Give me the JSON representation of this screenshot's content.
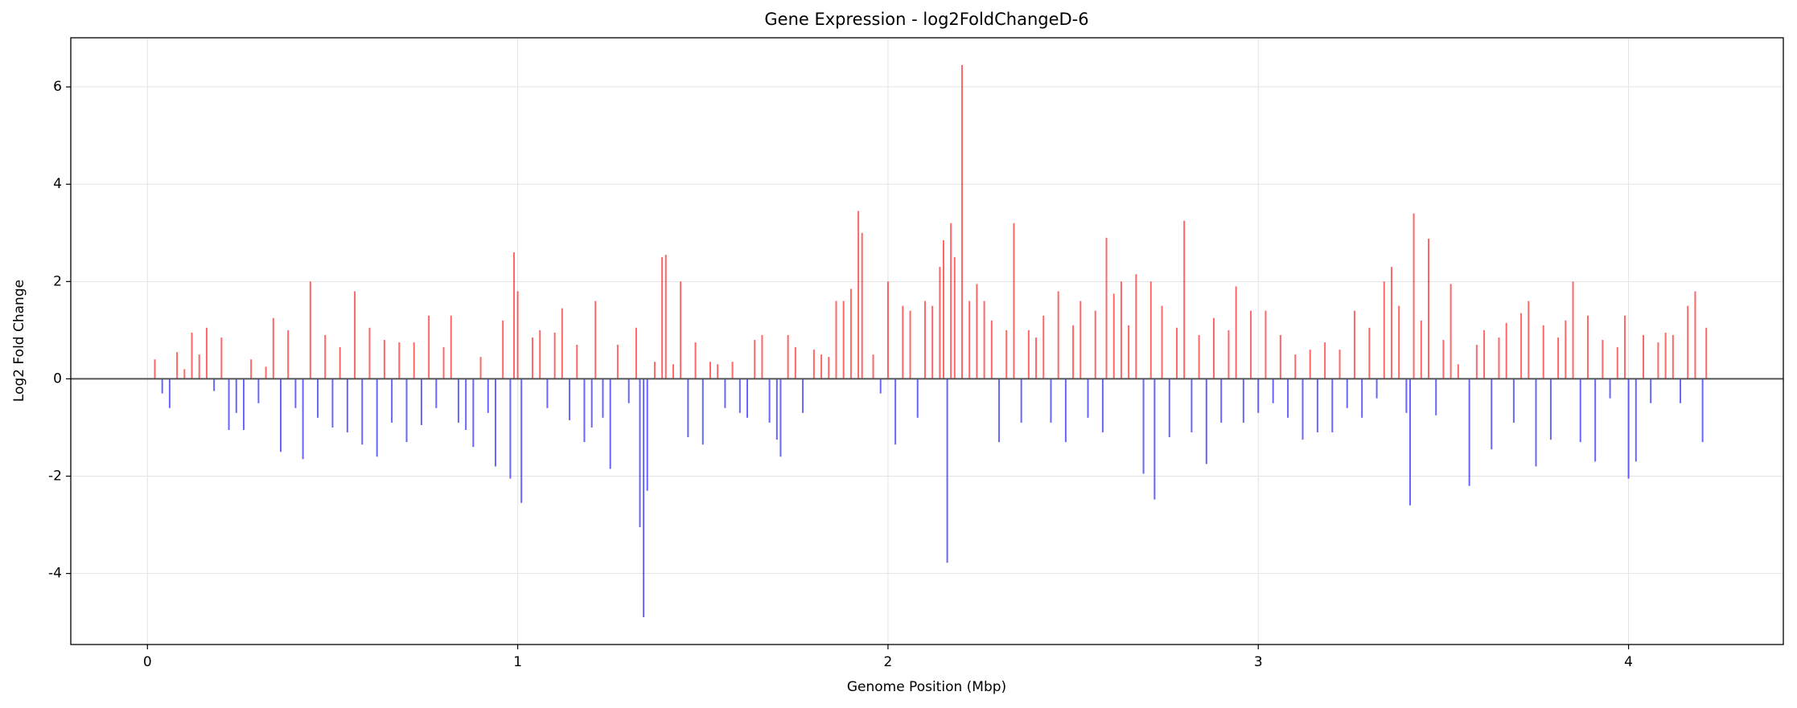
{
  "chart_data": {
    "type": "bar",
    "title": "Gene Expression - log2FoldChangeD-6",
    "xlabel": "Genome Position (Mbp)",
    "ylabel": "Log2 Fold Change",
    "x": [
      0.02,
      0.04,
      0.06,
      0.08,
      0.1,
      0.12,
      0.14,
      0.16,
      0.18,
      0.2,
      0.22,
      0.24,
      0.26,
      0.28,
      0.3,
      0.32,
      0.34,
      0.36,
      0.38,
      0.4,
      0.42,
      0.44,
      0.46,
      0.48,
      0.5,
      0.52,
      0.54,
      0.56,
      0.58,
      0.6,
      0.62,
      0.64,
      0.66,
      0.68,
      0.7,
      0.72,
      0.74,
      0.76,
      0.78,
      0.8,
      0.82,
      0.84,
      0.86,
      0.88,
      0.9,
      0.92,
      0.94,
      0.96,
      0.98,
      0.99,
      1.0,
      1.01,
      1.04,
      1.06,
      1.08,
      1.1,
      1.12,
      1.14,
      1.16,
      1.18,
      1.2,
      1.21,
      1.23,
      1.25,
      1.27,
      1.3,
      1.32,
      1.33,
      1.34,
      1.35,
      1.37,
      1.39,
      1.4,
      1.42,
      1.44,
      1.46,
      1.48,
      1.5,
      1.52,
      1.54,
      1.56,
      1.58,
      1.6,
      1.62,
      1.64,
      1.66,
      1.68,
      1.7,
      1.71,
      1.73,
      1.75,
      1.77,
      1.8,
      1.82,
      1.84,
      1.86,
      1.88,
      1.9,
      1.92,
      1.93,
      1.96,
      1.98,
      2.0,
      2.02,
      2.04,
      2.06,
      2.08,
      2.1,
      2.12,
      2.14,
      2.15,
      2.16,
      2.17,
      2.18,
      2.2,
      2.22,
      2.24,
      2.26,
      2.28,
      2.3,
      2.32,
      2.34,
      2.36,
      2.38,
      2.4,
      2.42,
      2.44,
      2.46,
      2.48,
      2.5,
      2.52,
      2.54,
      2.56,
      2.58,
      2.59,
      2.61,
      2.63,
      2.65,
      2.67,
      2.69,
      2.71,
      2.72,
      2.74,
      2.76,
      2.78,
      2.8,
      2.82,
      2.84,
      2.86,
      2.88,
      2.9,
      2.92,
      2.94,
      2.96,
      2.98,
      3.0,
      3.02,
      3.04,
      3.06,
      3.08,
      3.1,
      3.12,
      3.14,
      3.16,
      3.18,
      3.2,
      3.22,
      3.24,
      3.26,
      3.28,
      3.3,
      3.32,
      3.34,
      3.36,
      3.38,
      3.4,
      3.41,
      3.42,
      3.44,
      3.46,
      3.48,
      3.5,
      3.52,
      3.54,
      3.57,
      3.59,
      3.61,
      3.63,
      3.65,
      3.67,
      3.69,
      3.71,
      3.73,
      3.75,
      3.77,
      3.79,
      3.81,
      3.83,
      3.85,
      3.87,
      3.89,
      3.91,
      3.93,
      3.95,
      3.97,
      3.99,
      4.0,
      4.02,
      4.04,
      4.06,
      4.08,
      4.1,
      4.12,
      4.14,
      4.16,
      4.18,
      4.2,
      4.21
    ],
    "values": [
      0.4,
      -0.3,
      -0.6,
      0.55,
      0.2,
      0.95,
      0.5,
      1.05,
      -0.25,
      0.85,
      -1.05,
      -0.7,
      -1.05,
      0.4,
      -0.5,
      0.25,
      1.25,
      -1.5,
      1.0,
      -0.6,
      -1.65,
      2.0,
      -0.8,
      0.9,
      -1.0,
      0.65,
      -1.1,
      1.8,
      -1.35,
      1.05,
      -1.6,
      0.8,
      -0.9,
      0.75,
      -1.3,
      0.75,
      -0.95,
      1.3,
      -0.6,
      0.65,
      1.3,
      -0.9,
      -1.05,
      -1.4,
      0.45,
      -0.7,
      -1.8,
      1.2,
      -2.05,
      2.6,
      1.8,
      -2.55,
      0.85,
      1.0,
      -0.6,
      0.95,
      1.45,
      -0.85,
      0.7,
      -1.3,
      -1.0,
      1.6,
      -0.8,
      -1.85,
      0.7,
      -0.5,
      1.05,
      -3.05,
      -4.9,
      -2.3,
      0.35,
      2.5,
      2.55,
      0.3,
      2.0,
      -1.2,
      0.75,
      -1.35,
      0.35,
      0.3,
      -0.6,
      0.35,
      -0.7,
      -0.8,
      0.8,
      0.9,
      -0.9,
      -1.25,
      -1.6,
      0.9,
      0.65,
      -0.7,
      0.6,
      0.5,
      0.45,
      1.6,
      1.6,
      1.85,
      3.45,
      3.0,
      0.5,
      -0.3,
      2.0,
      -1.35,
      1.5,
      1.4,
      -0.8,
      1.6,
      1.5,
      2.3,
      2.85,
      -3.78,
      3.2,
      2.5,
      6.45,
      1.6,
      1.95,
      1.6,
      1.2,
      -1.3,
      1.0,
      3.2,
      -0.9,
      1.0,
      0.85,
      1.3,
      -0.9,
      1.8,
      -1.3,
      1.1,
      1.6,
      -0.8,
      1.4,
      -1.1,
      2.9,
      1.75,
      2.0,
      1.1,
      2.15,
      -1.95,
      2.0,
      -2.48,
      1.5,
      -1.2,
      1.05,
      3.25,
      -1.1,
      0.9,
      -1.75,
      1.25,
      -0.9,
      1.0,
      1.9,
      -0.9,
      1.4,
      -0.7,
      1.4,
      -0.5,
      0.9,
      -0.8,
      0.5,
      -1.25,
      0.6,
      -1.1,
      0.75,
      -1.1,
      0.6,
      -0.6,
      1.4,
      -0.8,
      1.05,
      -0.4,
      2.0,
      2.3,
      1.5,
      -0.7,
      -2.6,
      3.4,
      1.2,
      2.88,
      -0.75,
      0.8,
      1.95,
      0.3,
      -2.2,
      0.7,
      1.0,
      -1.45,
      0.85,
      1.15,
      -0.9,
      1.35,
      1.6,
      -1.8,
      1.1,
      -1.25,
      0.85,
      1.2,
      2.0,
      -1.3,
      1.3,
      -1.7,
      0.8,
      -0.4,
      0.65,
      1.3,
      -2.05,
      -1.7,
      0.9,
      -0.5,
      0.75,
      0.95,
      0.9,
      -0.5,
      1.5,
      1.8,
      -1.3,
      1.05
    ],
    "colors": {
      "positive": "#ff0000",
      "negative": "#0000ff"
    },
    "alpha": 0.6,
    "xlim": [
      -0.207,
      4.418
    ],
    "xticks": [
      0,
      1,
      2,
      3,
      4
    ],
    "ylim": [
      -5.46,
      7.01
    ],
    "yticks": [
      -4,
      -2,
      0,
      2,
      4,
      6
    ],
    "grid": true
  }
}
